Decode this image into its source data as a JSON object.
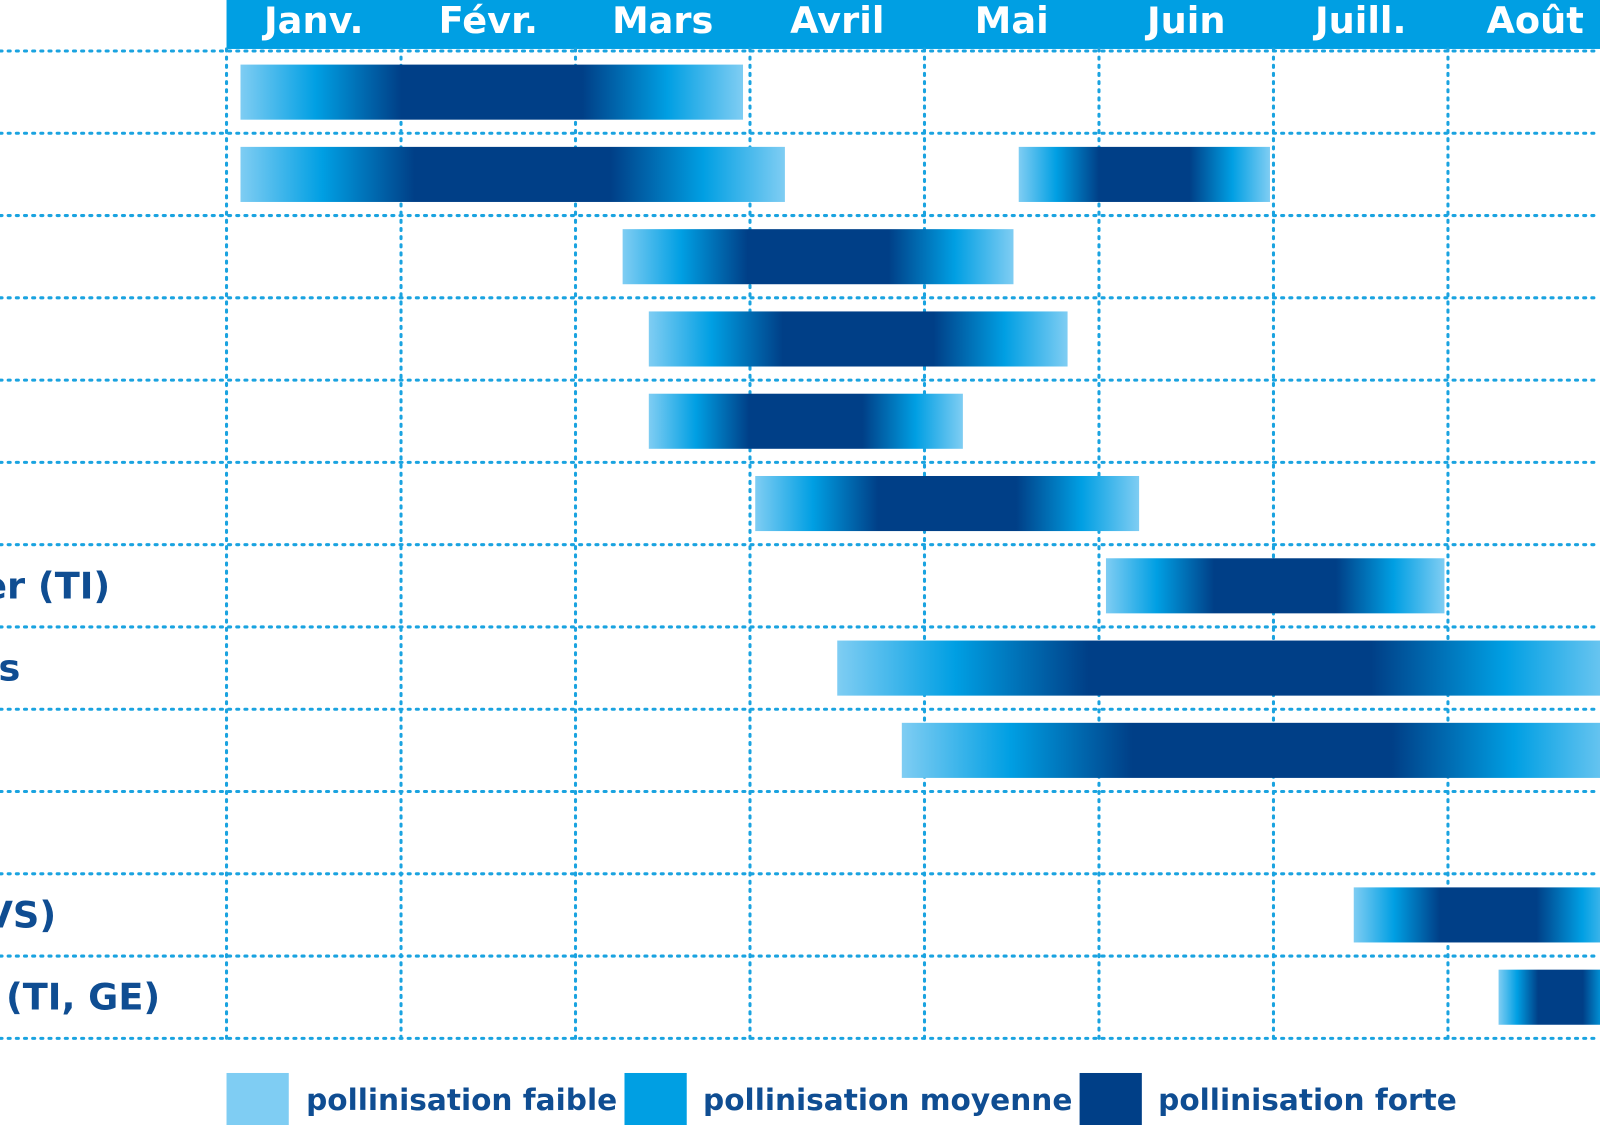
{
  "chart_data": {
    "type": "range-bar",
    "months": [
      "Janv.",
      "Févr.",
      "Mars",
      "Avril",
      "Mai",
      "Juin",
      "Juill.",
      "Août"
    ],
    "categories": [
      null,
      null,
      null,
      null,
      null,
      null,
      "er (TI)",
      "es",
      null,
      null,
      "VS)",
      "e (TI, GE)"
    ],
    "ranges": [
      [
        [
          0.08,
          2.96
        ]
      ],
      [
        [
          0.08,
          3.2
        ],
        [
          4.54,
          5.98
        ]
      ],
      [
        [
          2.27,
          4.51
        ]
      ],
      [
        [
          2.42,
          4.82
        ]
      ],
      [
        [
          2.42,
          4.22
        ]
      ],
      [
        [
          3.03,
          5.23
        ]
      ],
      [
        [
          5.04,
          6.98
        ]
      ],
      [
        [
          3.5,
          8
        ]
      ],
      [
        [
          3.87,
          8
        ]
      ],
      [],
      [
        [
          6.46,
          8
        ]
      ],
      [
        [
          7.29,
          8
        ]
      ]
    ],
    "xlim": [
      0,
      8
    ],
    "xticks": [
      0,
      1,
      2,
      3,
      4,
      5,
      6,
      7,
      8
    ],
    "header_color": "#009fe3",
    "legend": [
      {
        "label": "pollinisation faible",
        "color": "#7fcdf3"
      },
      {
        "label": "pollinisation moyenne",
        "color": "#009fe3"
      },
      {
        "label": "pollinisation forte",
        "color": "#003f87"
      }
    ]
  }
}
